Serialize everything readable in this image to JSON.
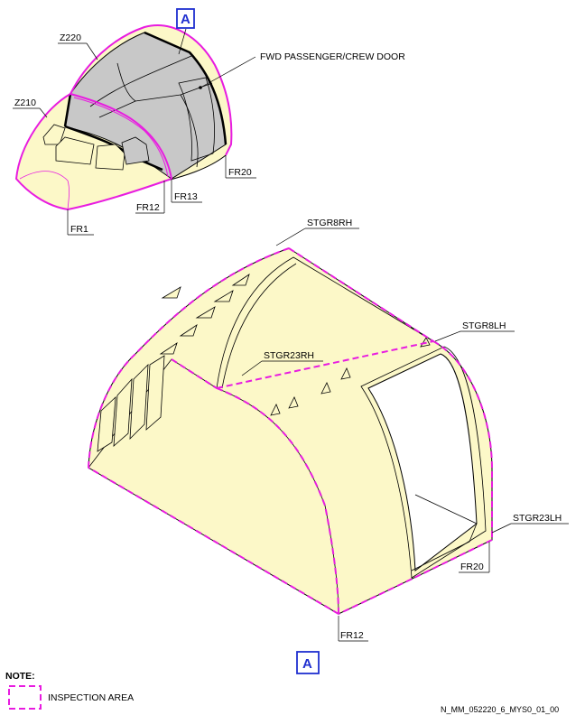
{
  "top_view": {
    "zone_z220": "Z220",
    "zone_z210": "Z210",
    "view_marker": "A",
    "door_label": "FWD PASSENGER/CREW DOOR",
    "frame_fr1": "FR1",
    "frame_fr12": "FR12",
    "frame_fr13": "FR13",
    "frame_fr20": "FR20"
  },
  "detail_view": {
    "stringer_stgr8rh": "STGR8RH",
    "stringer_stgr23rh": "STGR23RH",
    "stringer_stgr8lh": "STGR8LH",
    "stringer_stgr23lh": "STGR23LH",
    "frame_fr20": "FR20",
    "frame_fr12": "FR12",
    "view_marker": "A"
  },
  "note": {
    "title": "NOTE:",
    "legend_text": "INSPECTION AREA"
  },
  "document_id": "N_MM_052220_6_MYS0_01_00",
  "colors": {
    "inspection": "#e81ce0",
    "structure_fill": "#fcf8c8",
    "cabin_gray": "#c8c8c8",
    "marker_blue": "#1f2fd0"
  }
}
